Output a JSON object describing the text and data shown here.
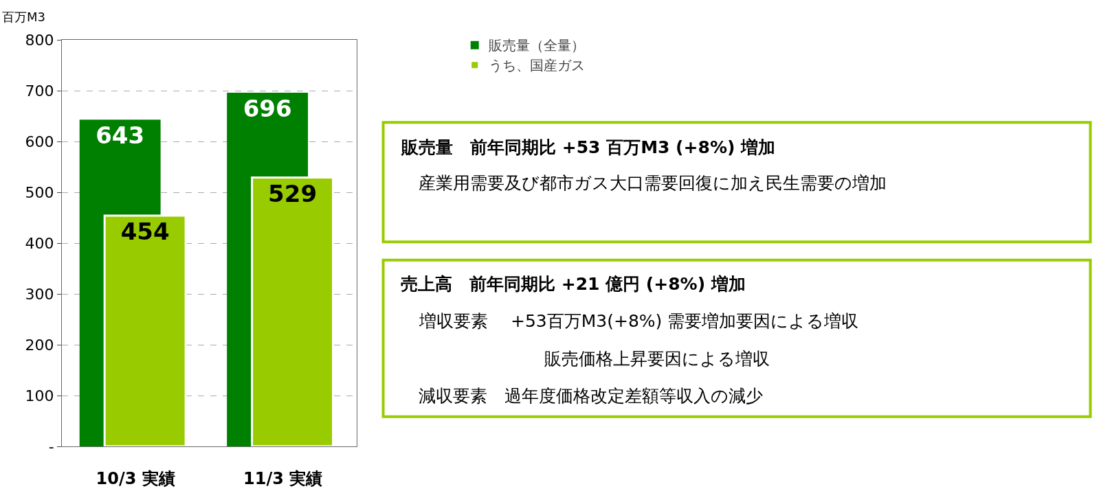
{
  "chart_data": {
    "type": "bar",
    "ylabel": "百万M3",
    "categories": [
      "10/3 実績",
      "11/3 実績"
    ],
    "series": [
      {
        "name": "販売量（全量）",
        "color": "#008000",
        "values": [
          643,
          696
        ]
      },
      {
        "name": "うち、国産ガス",
        "color": "#99cc00",
        "values": [
          454,
          529
        ]
      }
    ],
    "ylim": [
      0,
      800
    ],
    "yticks": [
      {
        "value": 0,
        "label": "-"
      },
      100,
      200,
      300,
      400,
      500,
      600,
      700,
      800
    ],
    "grid": "y",
    "legend": "top right",
    "data_labels": true,
    "annotations": [
      "販売量　前年同期比 +53 百万M3 (+8%) 増加",
      "産業用需要及び都市ガス大口需要回復に加え民生需要の増加",
      "売上高　前年同期比 +21 億円 (+8%) 増加",
      "増収要素　 +53百万M3(+8%) 需要増加要因による増収",
      "販売価格上昇要因による増収",
      "減収要素　過年度価格改定差額等収入の減少"
    ]
  }
}
